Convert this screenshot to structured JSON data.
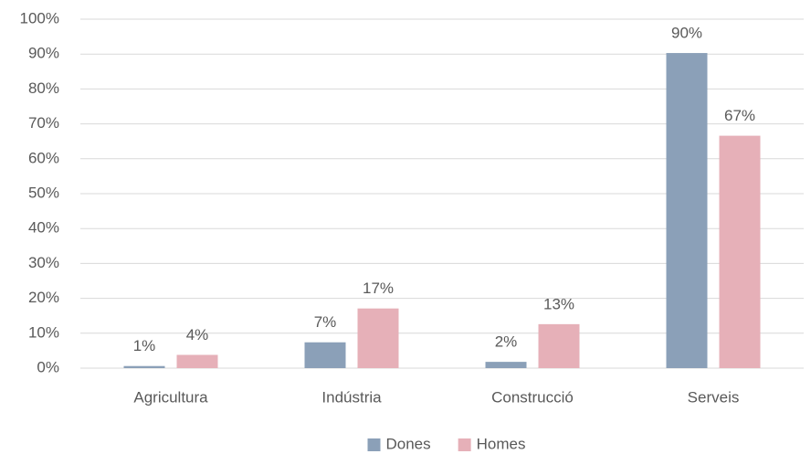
{
  "chart_data": {
    "type": "bar",
    "categories": [
      "Agricultura",
      "Indústria",
      "Construcció",
      "Serveis"
    ],
    "series": [
      {
        "name": "Dones",
        "color": "#8ba0b8",
        "values": [
          0.6,
          7.4,
          1.8,
          90.3
        ],
        "value_labels": [
          "1%",
          "7%",
          "2%",
          "90%"
        ]
      },
      {
        "name": "Homes",
        "color": "#e6b0b8",
        "values": [
          3.8,
          17.1,
          12.6,
          66.6
        ],
        "value_labels": [
          "4%",
          "17%",
          "13%",
          "67%"
        ]
      }
    ],
    "ylim": [
      0,
      100
    ],
    "yticks": [
      {
        "value": 0,
        "label": "0%"
      },
      {
        "value": 10,
        "label": "10%"
      },
      {
        "value": 20,
        "label": "20%"
      },
      {
        "value": 30,
        "label": "30%"
      },
      {
        "value": 40,
        "label": "40%"
      },
      {
        "value": 50,
        "label": "50%"
      },
      {
        "value": 60,
        "label": "60%"
      },
      {
        "value": 70,
        "label": "70%"
      },
      {
        "value": 80,
        "label": "80%"
      },
      {
        "value": 90,
        "label": "90%"
      },
      {
        "value": 100,
        "label": "100%"
      }
    ],
    "grid": true,
    "legend": "bottom"
  }
}
